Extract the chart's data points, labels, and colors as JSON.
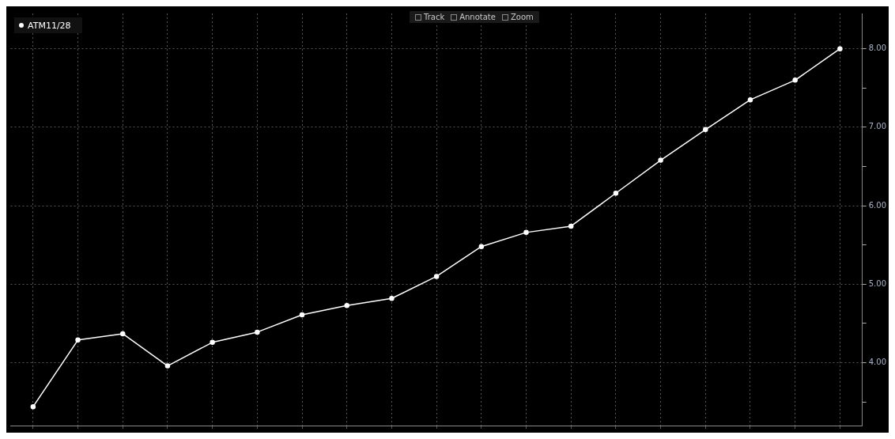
{
  "chart_data": {
    "type": "line",
    "categories": [
      null,
      null,
      null,
      null,
      null,
      null,
      null,
      null,
      null,
      null,
      null,
      null,
      null,
      null,
      null,
      null,
      null,
      null,
      null
    ],
    "series": [
      {
        "name": "ATM11/28",
        "color": "#ffffff",
        "values": [
          3.44,
          4.29,
          4.37,
          3.96,
          4.26,
          4.39,
          4.61,
          4.73,
          4.82,
          5.1,
          5.48,
          5.66,
          5.74,
          6.16,
          6.58,
          6.97,
          7.35,
          7.6,
          8.0
        ]
      }
    ],
    "ylim": [
      3.2,
      8.45
    ],
    "yticks": [
      {
        "value": 3.5,
        "label": null
      },
      {
        "value": 4,
        "label": "4.00"
      },
      {
        "value": 4.5,
        "label": null
      },
      {
        "value": 5,
        "label": "5.00"
      },
      {
        "value": 5.5,
        "label": null
      },
      {
        "value": 6,
        "label": "6.00"
      },
      {
        "value": 6.5,
        "label": null
      },
      {
        "value": 7,
        "label": "7.00"
      },
      {
        "value": 7.5,
        "label": null
      },
      {
        "value": 8,
        "label": "8.00"
      }
    ],
    "grid": true,
    "legend": "top left",
    "marker": "circle",
    "line_style": "solid",
    "tick_labels": "y",
    "annotations": [
      "Track",
      "Annotate",
      "Zoom"
    ]
  }
}
